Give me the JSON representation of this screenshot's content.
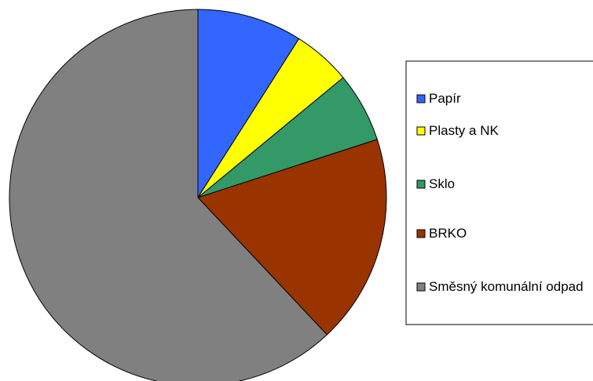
{
  "chart_data": {
    "type": "pie",
    "title": "",
    "legend_position": "right",
    "slices": [
      {
        "label": "Papír",
        "value": 9,
        "color": "#3366ff"
      },
      {
        "label": "Plasty a NK",
        "value": 5,
        "color": "#ffff00"
      },
      {
        "label": "Sklo",
        "value": 6,
        "color": "#339966"
      },
      {
        "label": "BRKO",
        "value": 18,
        "color": "#993300"
      },
      {
        "label": "Směsný komunální odpad",
        "value": 62,
        "color": "#808080"
      }
    ]
  }
}
